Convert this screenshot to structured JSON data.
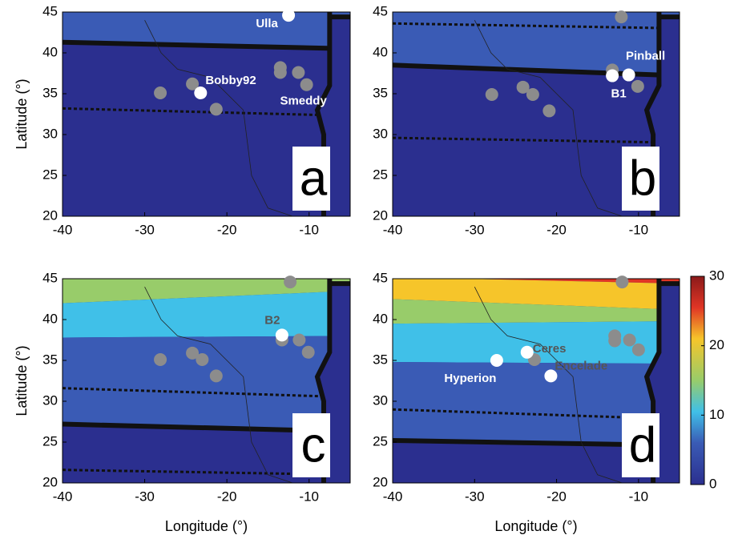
{
  "chart_data": [
    {
      "type": "scatter",
      "panel": "a",
      "ylabel": "Latitude (°)",
      "xlim": [
        -40,
        -5
      ],
      "ylim": [
        20,
        45
      ],
      "xticks": [
        -40,
        -30,
        -20,
        -10
      ],
      "yticks": [
        20,
        25,
        30,
        35,
        40,
        45
      ],
      "series": [
        {
          "color": "#8c8c8c",
          "x": [
            -28.1,
            -24.2,
            -21.3,
            -13.5,
            -13.5,
            -11.3,
            -10.3
          ],
          "y": [
            35.1,
            36.2,
            33.1,
            38.2,
            37.6,
            37.6,
            36.1
          ],
          "labels": [
            null,
            null,
            null,
            null,
            null,
            null,
            "Smeddy"
          ]
        },
        {
          "color": "#ffffff",
          "x": [
            -12.5,
            -23.2
          ],
          "y": [
            44.6,
            35.1
          ],
          "labels": [
            "Ulla",
            "Bobby92"
          ]
        }
      ]
    },
    {
      "type": "scatter",
      "panel": "b",
      "xlim": [
        -40,
        -5
      ],
      "ylim": [
        20,
        45
      ],
      "xticks": [
        -40,
        -30,
        -20,
        -10
      ],
      "yticks": [
        20,
        25,
        30,
        35,
        40,
        45
      ],
      "series": [
        {
          "color": "#8c8c8c",
          "x": [
            -27.9,
            -24.1,
            -22.9,
            -20.9,
            -12.1,
            -13.2,
            -10.1
          ],
          "y": [
            34.9,
            35.8,
            34.9,
            32.9,
            44.4,
            37.9,
            35.9
          ]
        },
        {
          "color": "#ffffff",
          "x": [
            -13.2,
            -11.2
          ],
          "y": [
            37.2,
            37.3
          ],
          "labels": [
            "B1",
            "Pinball"
          ]
        }
      ]
    },
    {
      "type": "scatter",
      "panel": "c",
      "ylabel": "Latitude (°)",
      "xlabel": "Longitude (°)",
      "xlim": [
        -40,
        -5
      ],
      "ylim": [
        20,
        45
      ],
      "xticks": [
        -40,
        -30,
        -20,
        -10
      ],
      "yticks": [
        20,
        25,
        30,
        35,
        40,
        45
      ],
      "series": [
        {
          "color": "#8c8c8c",
          "x": [
            -12.3,
            -28.1,
            -24.2,
            -23.0,
            -21.3,
            -13.3,
            -11.2,
            -10.1
          ],
          "y": [
            44.6,
            35.1,
            35.9,
            35.1,
            33.1,
            37.5,
            37.5,
            36.0
          ]
        },
        {
          "color": "#ffffff",
          "x": [
            -13.3
          ],
          "y": [
            38.1
          ],
          "labels": [
            "B2"
          ]
        }
      ]
    },
    {
      "type": "scatter",
      "panel": "d",
      "xlabel": "Longitude (°)",
      "xlim": [
        -40,
        -5
      ],
      "ylim": [
        20,
        45
      ],
      "xticks": [
        -40,
        -30,
        -20,
        -10
      ],
      "yticks": [
        20,
        25,
        30,
        35,
        40,
        45
      ],
      "series": [
        {
          "color": "#8c8c8c",
          "x": [
            -12.0,
            -12.9,
            -12.9,
            -11.1,
            -10.0,
            -22.7
          ],
          "y": [
            44.6,
            38.0,
            37.4,
            37.5,
            36.3,
            35.1
          ]
        },
        {
          "color": "#ffffff",
          "x": [
            -27.3,
            -23.6,
            -20.7
          ],
          "y": [
            35.0,
            36.0,
            33.1
          ],
          "labels": [
            "Hyperion",
            "Ceres",
            "Encelade"
          ]
        }
      ]
    },
    {
      "type": "colorbar",
      "ylim": [
        0,
        30
      ],
      "yticks": [
        0,
        10,
        20,
        30
      ]
    }
  ]
}
